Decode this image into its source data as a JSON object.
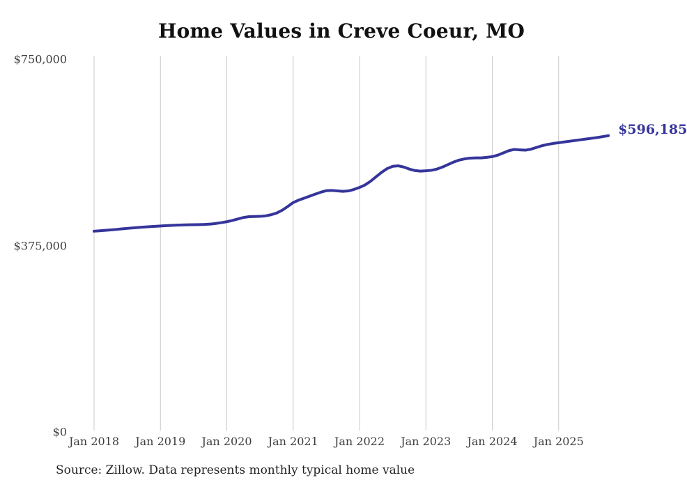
{
  "page": {
    "source_note": "Source: Zillow. Data represents monthly typical home value"
  },
  "colors": {
    "line": "#35359b",
    "grid": "#c9c9c9",
    "tick_text": "#3d3d3d",
    "title_text": "#111111",
    "end_label": "#35359b",
    "background": "#ffffff"
  },
  "chart_data": {
    "type": "line",
    "title": "Home Values in Creve Coeur, MO",
    "xlabel": "",
    "ylabel": "",
    "ylim": [
      0,
      750000
    ],
    "grid": "vertical-only",
    "legend": "none",
    "end_label": "$596,185",
    "final_value": 596185,
    "x_tick_labels": [
      "Jan 2018",
      "Jan 2019",
      "Jan 2020",
      "Jan 2021",
      "Jan 2022",
      "Jan 2023",
      "Jan 2024",
      "Jan 2025"
    ],
    "y_ticks": [
      {
        "label": "$0",
        "value": 0
      },
      {
        "label": "$375,000",
        "value": 375000
      },
      {
        "label": "$750,000",
        "value": 750000
      }
    ],
    "x_months": [
      "2018-01",
      "2018-02",
      "2018-03",
      "2018-04",
      "2018-05",
      "2018-06",
      "2018-07",
      "2018-08",
      "2018-09",
      "2018-10",
      "2018-11",
      "2018-12",
      "2019-01",
      "2019-02",
      "2019-03",
      "2019-04",
      "2019-05",
      "2019-06",
      "2019-07",
      "2019-08",
      "2019-09",
      "2019-10",
      "2019-11",
      "2019-12",
      "2020-01",
      "2020-02",
      "2020-03",
      "2020-04",
      "2020-05",
      "2020-06",
      "2020-07",
      "2020-08",
      "2020-09",
      "2020-10",
      "2020-11",
      "2020-12",
      "2021-01",
      "2021-02",
      "2021-03",
      "2021-04",
      "2021-05",
      "2021-06",
      "2021-07",
      "2021-08",
      "2021-09",
      "2021-10",
      "2021-11",
      "2021-12",
      "2022-01",
      "2022-02",
      "2022-03",
      "2022-04",
      "2022-05",
      "2022-06",
      "2022-07",
      "2022-08",
      "2022-09",
      "2022-10",
      "2022-11",
      "2022-12",
      "2023-01",
      "2023-02",
      "2023-03",
      "2023-04",
      "2023-05",
      "2023-06",
      "2023-07",
      "2023-08",
      "2023-09",
      "2023-10",
      "2023-11",
      "2023-12",
      "2024-01",
      "2024-02",
      "2024-03",
      "2024-04",
      "2024-05",
      "2024-06",
      "2024-07",
      "2024-08",
      "2024-09",
      "2024-10",
      "2024-11",
      "2024-12",
      "2025-01",
      "2025-02",
      "2025-03",
      "2025-04",
      "2025-05",
      "2025-06",
      "2025-07",
      "2025-08",
      "2025-09",
      "2025-10"
    ],
    "series": [
      {
        "name": "Typical home value",
        "values": [
          404000,
          404800,
          405600,
          406500,
          407500,
          408600,
          409600,
          410500,
          411400,
          412300,
          413100,
          413800,
          414500,
          415100,
          415600,
          416100,
          416500,
          416800,
          417000,
          417200,
          417500,
          418200,
          419500,
          421200,
          423000,
          425500,
          428500,
          431500,
          433200,
          433600,
          433800,
          434800,
          437000,
          440500,
          446000,
          453500,
          461500,
          466500,
          470500,
          474500,
          478500,
          482500,
          485500,
          486000,
          485000,
          484200,
          485000,
          488000,
          492000,
          497000,
          504500,
          513500,
          522500,
          530000,
          534500,
          535500,
          533000,
          529000,
          526000,
          524800,
          525500,
          526500,
          529000,
          533000,
          538000,
          543000,
          547000,
          549500,
          551000,
          551500,
          551500,
          552500,
          554000,
          557000,
          561500,
          566000,
          568500,
          567500,
          567000,
          569000,
          572500,
          576000,
          578500,
          580500,
          582000,
          583500,
          585000,
          586500,
          588000,
          589500,
          591000,
          592500,
          594300,
          596185
        ]
      }
    ]
  }
}
